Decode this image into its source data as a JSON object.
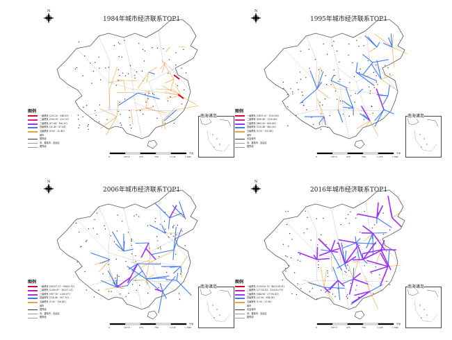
{
  "panels": [
    {
      "title": "1984年城市经济联系TOP1",
      "inset_label": "南海诸岛",
      "legend_title": "图例",
      "legend_items": [
        {
          "label": "一级联系 (220.20 - 548.61)",
          "color": "#d9002a"
        },
        {
          "label": "二级联系 (106.39 - 220.20)",
          "color": "#c21ea0"
        },
        {
          "label": "三级联系 (87.64 - 106.39)",
          "color": "#9b30ff"
        },
        {
          "label": "四级联系 (20.40 - 87.64)",
          "color": "#3c78ff"
        },
        {
          "label": "五级联系 (0.63 - 20.40)",
          "color": "#f0a030"
        }
      ],
      "legend_extra": [
        "城市",
        "国界线",
        "省、直辖市、自治区",
        "国界线"
      ],
      "flow_density": {
        "orange": 40,
        "blue": 4,
        "purple": 0
      }
    },
    {
      "title": "1995年城市经济联系TOP1",
      "inset_label": "南海诸岛",
      "legend_title": "图例",
      "legend_items": [
        {
          "label": "一级联系 (1859.20 - 1120.86)",
          "color": "#d9002a"
        },
        {
          "label": "二级联系 (806.49 - 1120.86)",
          "color": "#c21ea0"
        },
        {
          "label": "三级联系 (465.00 - 806.49)",
          "color": "#9b30ff"
        },
        {
          "label": "四级联系 (120.48 - 465.00)",
          "color": "#3c78ff"
        },
        {
          "label": "五级联系 (0.05 - 120.48)",
          "color": "#f0a030"
        }
      ],
      "legend_extra": [
        "城市",
        "省会城市",
        "省、直辖市、自治区",
        "国界线"
      ],
      "flow_density": {
        "orange": 18,
        "blue": 38,
        "purple": 2
      }
    },
    {
      "title": "2006年城市经济联系TOP1",
      "inset_label": "南海诸岛",
      "legend_title": "图例",
      "legend_items": [
        {
          "label": "一级联系 (16207.31 - 99859.11)",
          "color": "#d9002a"
        },
        {
          "label": "二级联系 (2260.87 - 16207.31)",
          "color": "#c21ea0"
        },
        {
          "label": "三级联系 (987.10 - 2260.87)",
          "color": "#9b30ff"
        },
        {
          "label": "四级联系 (126.40 - 987.10)",
          "color": "#3c78ff"
        },
        {
          "label": "五级联系 (1.00 - 126.40)",
          "color": "#f0a030"
        }
      ],
      "legend_extra": [
        "城市",
        "国界线",
        "省、直辖市、自治区",
        "国界线"
      ],
      "flow_density": {
        "orange": 22,
        "blue": 46,
        "purple": 6
      }
    },
    {
      "title": "2016年城市经济联系TOP1",
      "inset_label": "南海诸岛",
      "legend_title": "图例",
      "legend_items": [
        {
          "label": "一级联系 (120030.75 - 482124.91)",
          "color": "#d9002a"
        },
        {
          "label": "二级联系 (27750.41 - 120030.75)",
          "color": "#c21ea0"
        },
        {
          "label": "三级联系 (544.96 - 27750.41)",
          "color": "#9b30ff"
        },
        {
          "label": "四级联系 (21.96 - 544.96)",
          "color": "#3c78ff"
        },
        {
          "label": "五级联系 (1.00 - 21.96)",
          "color": "#f0a030"
        }
      ],
      "legend_extra": [
        "城市",
        "省会城市",
        "省、直辖市、自治区",
        "国界线"
      ],
      "flow_density": {
        "orange": 18,
        "blue": 30,
        "purple": 44
      }
    }
  ],
  "scale_labels": [
    "0",
    "187.5",
    "375",
    "750",
    "1,125",
    "1,500"
  ],
  "scale_unit": "千米",
  "compass_letter": "N",
  "colors": {
    "boundary": "#555555",
    "province": "#aaaaaa",
    "inset_border": "#444444"
  }
}
